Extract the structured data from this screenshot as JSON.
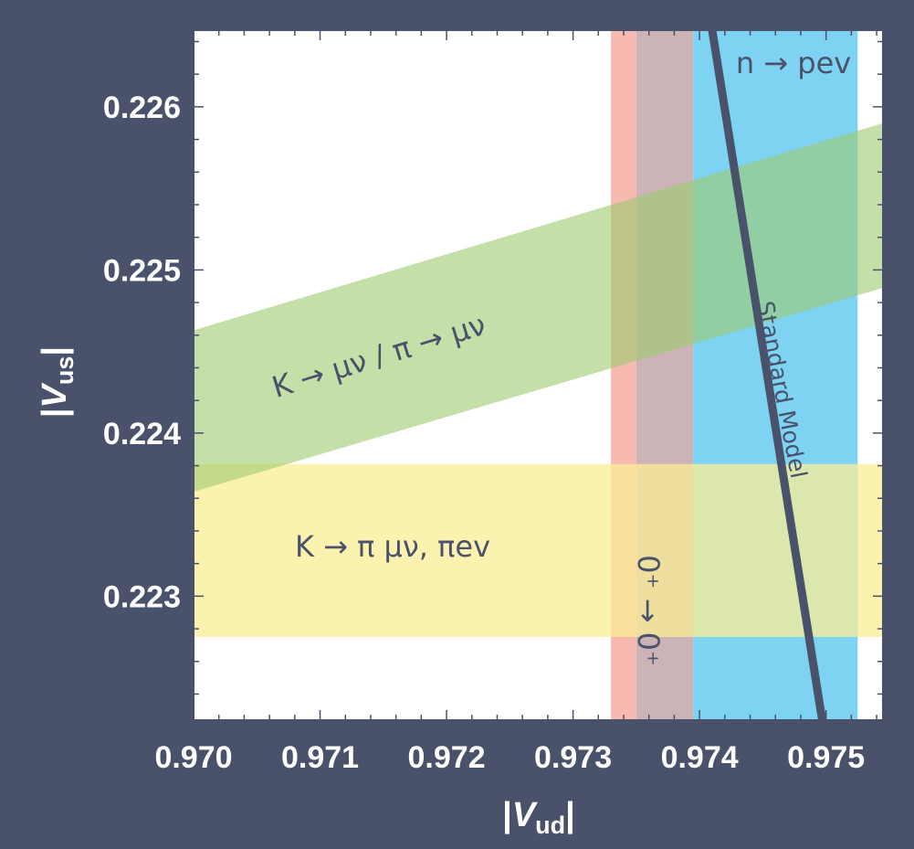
{
  "chart_data": {
    "type": "area",
    "title": "",
    "xlabel": {
      "prefix": "|",
      "var": "V",
      "sub": "ud",
      "suffix": "|"
    },
    "ylabel": {
      "prefix": "|",
      "var": "V",
      "sub": "us",
      "suffix": "|"
    },
    "xlim": [
      0.97,
      0.97545
    ],
    "ylim": [
      0.22224,
      0.22647
    ],
    "x_ticks": [
      "0.970",
      "0.971",
      "0.972",
      "0.973",
      "0.974",
      "0.975"
    ],
    "y_ticks": [
      "0.223",
      "0.224",
      "0.225",
      "0.226"
    ],
    "grid": false,
    "colors": {
      "pink": "#f8b9b1",
      "mauve": "#ccb3b8",
      "blue": "#7fd3f2",
      "green": "#9ccc6e",
      "yellow": "#fbed96",
      "line": "#4a526b"
    },
    "bands": [
      {
        "label": "n → pev",
        "orientation": "vertical",
        "x": [
          0.97395,
          0.97525
        ]
      },
      {
        "label": "0⁺ → 0⁺",
        "orientation": "vertical",
        "x": [
          0.9733,
          0.97395
        ],
        "core": [
          0.9735,
          0.97395
        ]
      },
      {
        "label": "K → μν / π → μν",
        "orientation": "slanted",
        "x": [
          0.97,
          0.97545
        ],
        "y_lower": [
          0.22364,
          0.22489
        ],
        "y_upper": [
          0.22463,
          0.2259
        ]
      },
      {
        "label": "K → π μν, πev",
        "orientation": "horizontal",
        "y": [
          0.22275,
          0.22381
        ]
      }
    ],
    "curve": {
      "label": "Standard Model",
      "x": [
        0.9741,
        0.97497
      ],
      "y": [
        0.22647,
        0.22224
      ]
    }
  }
}
